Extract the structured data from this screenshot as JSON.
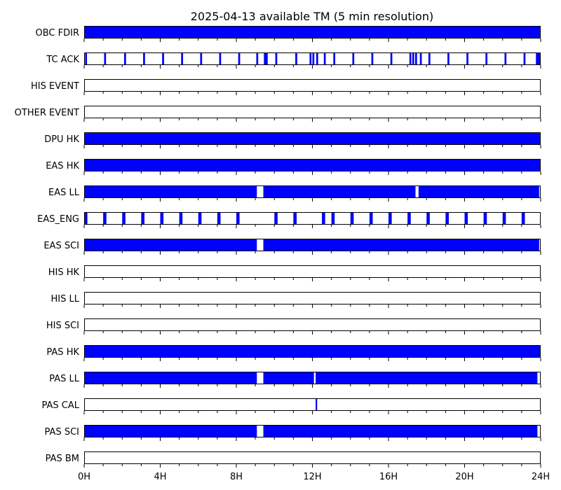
{
  "chart_data": {
    "type": "bar",
    "title": "2025-04-13 available TM (5 min resolution)",
    "xlabel": "",
    "ylabel": "",
    "xlim": [
      0,
      24
    ],
    "x_unit": "hours",
    "x_ticks": [
      {
        "value": 0,
        "label": "0H"
      },
      {
        "value": 4,
        "label": "4H"
      },
      {
        "value": 8,
        "label": "8H"
      },
      {
        "value": 12,
        "label": "12H"
      },
      {
        "value": 16,
        "label": "16H"
      },
      {
        "value": 20,
        "label": "20H"
      },
      {
        "value": 24,
        "label": "24H"
      }
    ],
    "minor_tick_step_hours": 1,
    "grid": false,
    "colors": {
      "available": "#0000ff",
      "outline": "#000000",
      "background": "#ffffff"
    },
    "series": [
      {
        "name": "OBC FDIR",
        "intervals": [
          [
            0,
            24
          ]
        ]
      },
      {
        "name": "TC ACK",
        "intervals": [
          [
            0.05,
            0.15
          ],
          [
            1.05,
            1.15
          ],
          [
            2.1,
            2.2
          ],
          [
            3.1,
            3.2
          ],
          [
            4.1,
            4.2
          ],
          [
            5.1,
            5.2
          ],
          [
            6.1,
            6.2
          ],
          [
            7.1,
            7.2
          ],
          [
            8.1,
            8.2
          ],
          [
            9.05,
            9.15
          ],
          [
            9.45,
            9.65
          ],
          [
            10.05,
            10.15
          ],
          [
            11.1,
            11.2
          ],
          [
            11.85,
            11.95
          ],
          [
            12.0,
            12.1
          ],
          [
            12.2,
            12.3
          ],
          [
            12.6,
            12.7
          ],
          [
            13.1,
            13.2
          ],
          [
            14.1,
            14.2
          ],
          [
            15.1,
            15.2
          ],
          [
            16.1,
            16.2
          ],
          [
            17.1,
            17.2
          ],
          [
            17.25,
            17.35
          ],
          [
            17.4,
            17.5
          ],
          [
            17.65,
            17.75
          ],
          [
            18.1,
            18.2
          ],
          [
            19.1,
            19.2
          ],
          [
            20.1,
            20.2
          ],
          [
            21.1,
            21.2
          ],
          [
            22.1,
            22.2
          ],
          [
            23.1,
            23.2
          ],
          [
            23.75,
            24.0
          ]
        ]
      },
      {
        "name": "HIS EVENT",
        "intervals": []
      },
      {
        "name": "OTHER EVENT",
        "intervals": []
      },
      {
        "name": "DPU HK",
        "intervals": [
          [
            0,
            24
          ]
        ]
      },
      {
        "name": "EAS HK",
        "intervals": [
          [
            0,
            24
          ]
        ]
      },
      {
        "name": "EAS LL",
        "intervals": [
          [
            0,
            9.08
          ],
          [
            9.42,
            17.42
          ],
          [
            17.58,
            23.92
          ]
        ]
      },
      {
        "name": "EAS_ENG",
        "intervals": [
          [
            0.0,
            0.17
          ],
          [
            1.0,
            1.17
          ],
          [
            2.0,
            2.17
          ],
          [
            3.0,
            3.17
          ],
          [
            4.0,
            4.17
          ],
          [
            5.0,
            5.17
          ],
          [
            6.0,
            6.17
          ],
          [
            7.0,
            7.17
          ],
          [
            8.0,
            8.17
          ],
          [
            10.0,
            10.17
          ],
          [
            11.0,
            11.17
          ],
          [
            12.5,
            12.67
          ],
          [
            13.0,
            13.17
          ],
          [
            14.0,
            14.17
          ],
          [
            15.0,
            15.17
          ],
          [
            16.0,
            16.17
          ],
          [
            17.0,
            17.17
          ],
          [
            18.0,
            18.17
          ],
          [
            19.0,
            19.17
          ],
          [
            20.0,
            20.17
          ],
          [
            21.0,
            21.17
          ],
          [
            22.0,
            22.17
          ],
          [
            23.0,
            23.17
          ]
        ]
      },
      {
        "name": "EAS SCI",
        "intervals": [
          [
            0,
            9.08
          ],
          [
            9.42,
            23.92
          ]
        ]
      },
      {
        "name": "HIS HK",
        "intervals": []
      },
      {
        "name": "HIS LL",
        "intervals": []
      },
      {
        "name": "HIS SCI",
        "intervals": []
      },
      {
        "name": "PAS HK",
        "intervals": [
          [
            0,
            24
          ]
        ]
      },
      {
        "name": "PAS LL",
        "intervals": [
          [
            0,
            9.08
          ],
          [
            9.42,
            12.08
          ],
          [
            12.17,
            23.83
          ]
        ]
      },
      {
        "name": "PAS CAL",
        "intervals": [
          [
            12.17,
            12.25
          ]
        ]
      },
      {
        "name": "PAS SCI",
        "intervals": [
          [
            0,
            9.08
          ],
          [
            9.42,
            23.83
          ]
        ]
      },
      {
        "name": "PAS BM",
        "intervals": []
      }
    ]
  }
}
